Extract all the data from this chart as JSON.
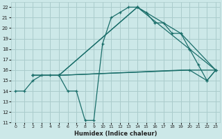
{
  "xlabel": "Humidex (Indice chaleur)",
  "xlim": [
    -0.5,
    23.5
  ],
  "ylim": [
    11,
    22.5
  ],
  "xticks": [
    0,
    1,
    2,
    3,
    4,
    5,
    6,
    7,
    8,
    9,
    10,
    11,
    12,
    13,
    14,
    15,
    16,
    17,
    18,
    19,
    20,
    21,
    22,
    23
  ],
  "yticks": [
    11,
    12,
    13,
    14,
    15,
    16,
    17,
    18,
    19,
    20,
    21,
    22
  ],
  "bg_color": "#cce8e8",
  "grid_color": "#aacccc",
  "line_color": "#1a6e6a",
  "line1_x": [
    0,
    1,
    2,
    3,
    4,
    5,
    6,
    7,
    8,
    9,
    10,
    11,
    12,
    13,
    14,
    15,
    16,
    17,
    18,
    19,
    20,
    21,
    22,
    23
  ],
  "line1_y": [
    14,
    14,
    15,
    15.5,
    15.5,
    15.5,
    14,
    14,
    11.2,
    11.2,
    18.5,
    21,
    21.5,
    22,
    22,
    21.5,
    20.5,
    20.5,
    19.5,
    19.5,
    18,
    16.5,
    15,
    16
  ],
  "line2_x": [
    2,
    5,
    14,
    19,
    23
  ],
  "line2_y": [
    15.5,
    15.5,
    22,
    19.5,
    16
  ],
  "line3_x": [
    2,
    5,
    14,
    20,
    23
  ],
  "line3_y": [
    15.5,
    15.5,
    22,
    18,
    16
  ],
  "line4_x": [
    2,
    5,
    20,
    22,
    23
  ],
  "line4_y": [
    15.5,
    15.5,
    16,
    15,
    16
  ],
  "line5_x": [
    2,
    5,
    19,
    23
  ],
  "line5_y": [
    15.5,
    15.5,
    16,
    16
  ]
}
